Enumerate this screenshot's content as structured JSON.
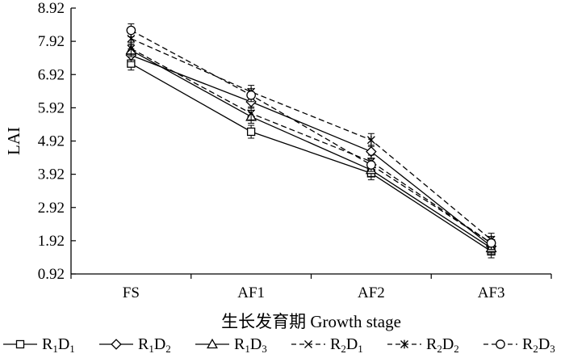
{
  "chart_data": {
    "type": "line",
    "title": "",
    "xlabel": "生长发育期 Growth stage",
    "ylabel": "LAI",
    "categories": [
      "FS",
      "AF1",
      "AF2",
      "AF3"
    ],
    "yticks": [
      "0.92",
      "1.92",
      "2.92",
      "3.92",
      "4.92",
      "5.92",
      "6.92",
      "7.92",
      "8.92"
    ],
    "ylim": [
      0.92,
      8.92
    ],
    "grid": false,
    "legend_position": "bottom",
    "series": [
      {
        "name": "R1D1",
        "label_main": [
          "R",
          "D"
        ],
        "label_sub": [
          "1",
          "1"
        ],
        "marker": "square",
        "dash": "solid",
        "values": [
          7.25,
          5.2,
          3.95,
          1.6
        ]
      },
      {
        "name": "R1D2",
        "label_main": [
          "R",
          "D"
        ],
        "label_sub": [
          "1",
          "2"
        ],
        "marker": "diamond",
        "dash": "solid",
        "values": [
          7.5,
          6.1,
          4.6,
          1.75
        ]
      },
      {
        "name": "R1D3",
        "label_main": [
          "R",
          "D"
        ],
        "label_sub": [
          "1",
          "3"
        ],
        "marker": "triangle",
        "dash": "solid",
        "values": [
          7.65,
          5.65,
          4.05,
          1.7
        ]
      },
      {
        "name": "R2D1",
        "label_main": [
          "R",
          "D"
        ],
        "label_sub": [
          "2",
          "1"
        ],
        "marker": "x",
        "dash": "dashed",
        "values": [
          7.7,
          5.75,
          4.3,
          1.85
        ]
      },
      {
        "name": "R2D2",
        "label_main": [
          "R",
          "D"
        ],
        "label_sub": [
          "2",
          "2"
        ],
        "marker": "star",
        "dash": "dashed",
        "values": [
          8.0,
          6.4,
          4.95,
          1.95
        ]
      },
      {
        "name": "R2D3",
        "label_main": [
          "R",
          "D"
        ],
        "label_sub": [
          "2",
          "3"
        ],
        "marker": "circle",
        "dash": "dashed",
        "values": [
          8.25,
          6.3,
          4.2,
          1.85
        ]
      }
    ]
  }
}
